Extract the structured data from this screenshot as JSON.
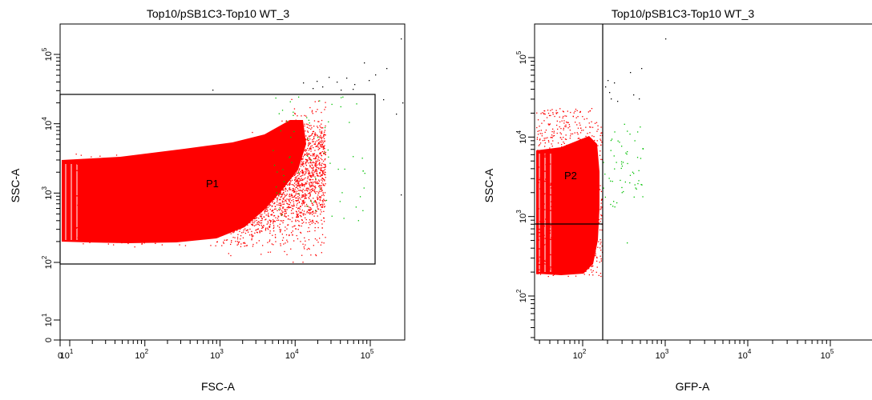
{
  "chart_data": [
    {
      "type": "scatter",
      "title": "Top10/pSB1C3-Top10 WT_3",
      "xlabel": "FSC-A",
      "ylabel": "SSC-A",
      "x_scale": "log",
      "y_scale": "log",
      "xlim": [
        0,
        200000
      ],
      "ylim": [
        0,
        300000
      ],
      "x_ticks": [
        {
          "value": 0,
          "base": "0",
          "exp": ""
        },
        {
          "value": 10,
          "base": "10",
          "exp": "1"
        },
        {
          "value": 100,
          "base": "10",
          "exp": "2"
        },
        {
          "value": 1000,
          "base": "10",
          "exp": "3"
        },
        {
          "value": 10000,
          "base": "10",
          "exp": "4"
        },
        {
          "value": 100000,
          "base": "10",
          "exp": "5"
        }
      ],
      "y_ticks": [
        {
          "value": 0,
          "base": "0",
          "exp": ""
        },
        {
          "value": 10,
          "base": "10",
          "exp": "1"
        },
        {
          "value": 100,
          "base": "10",
          "exp": "2"
        },
        {
          "value": 1000,
          "base": "10",
          "exp": "3"
        },
        {
          "value": 10000,
          "base": "10",
          "exp": "4"
        },
        {
          "value": 100000,
          "base": "10",
          "exp": "5"
        }
      ],
      "gates": [
        {
          "name": "P1",
          "shape": "rectangle",
          "x": [
            3,
            105000
          ],
          "y": [
            100,
            27000
          ]
        }
      ],
      "populations": [
        {
          "color": "#ff0000",
          "gated": "P1",
          "density_region": {
            "x": [
              3,
              4000
            ],
            "y": [
              300,
              3000
            ]
          },
          "tail": {
            "x": [
              4000,
              30000
            ],
            "y": [
              300,
              20000
            ]
          }
        },
        {
          "color": "#00c000",
          "sparse": true,
          "x": [
            10000,
            60000
          ],
          "y": [
            400,
            20000
          ]
        },
        {
          "color": "#000000",
          "sparse": true,
          "x": [
            20000,
            200000
          ],
          "y": [
            1000,
            80000
          ]
        }
      ]
    },
    {
      "type": "scatter",
      "title": "Top10/pSB1C3-Top10 WT_3",
      "xlabel": "GFP-A",
      "ylabel": "SSC-A",
      "x_scale": "log",
      "y_scale": "log",
      "xlim": [
        20,
        200000
      ],
      "ylim": [
        20,
        300000
      ],
      "x_ticks": [
        {
          "value": 100,
          "base": "10",
          "exp": "2"
        },
        {
          "value": 1000,
          "base": "10",
          "exp": "3"
        },
        {
          "value": 10000,
          "base": "10",
          "exp": "4"
        },
        {
          "value": 100000,
          "base": "10",
          "exp": "5"
        }
      ],
      "y_ticks": [
        {
          "value": 100,
          "base": "10",
          "exp": "2"
        },
        {
          "value": 1000,
          "base": "10",
          "exp": "3"
        },
        {
          "value": 10000,
          "base": "10",
          "exp": "4"
        },
        {
          "value": 100000,
          "base": "10",
          "exp": "5"
        }
      ],
      "gates": [
        {
          "name": "P2",
          "shape": "quadrant",
          "x_cut": 175,
          "y_cut": 750
        }
      ],
      "populations": [
        {
          "color": "#ff0000",
          "gated": "P2",
          "density_region": {
            "x": [
              25,
              165
            ],
            "y": [
              190,
              12000
            ]
          }
        },
        {
          "color": "#00c000",
          "sparse": true,
          "x": [
            180,
            700
          ],
          "y": [
            400,
            12000
          ]
        },
        {
          "color": "#000000",
          "sparse": true,
          "x": [
            170,
            1200
          ],
          "y": [
            15000,
            150000
          ]
        }
      ]
    }
  ]
}
